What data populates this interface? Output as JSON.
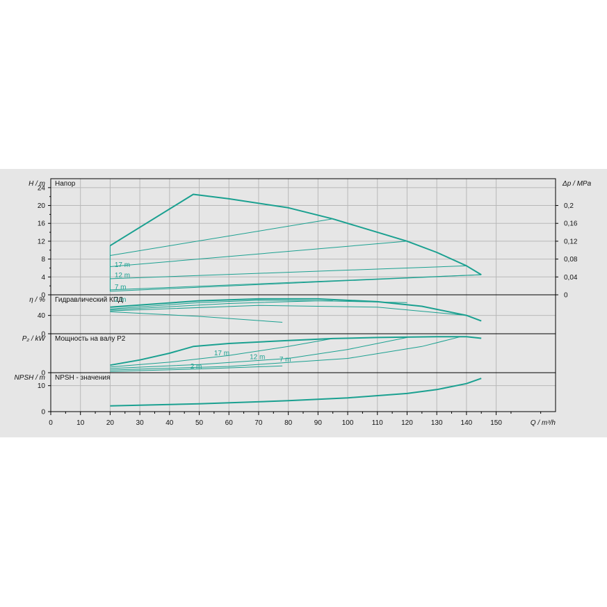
{
  "colors": {
    "curve": "#1aa090",
    "grid": "#b8b8b8",
    "panel": "#e6e6e6",
    "frame": "#000000"
  },
  "chart_data": {
    "type": "line",
    "x_axis": {
      "label": "Q / m³/h",
      "range": [
        0,
        170
      ],
      "ticks": [
        "0",
        "10",
        "20",
        "30",
        "40",
        "50",
        "60",
        "70",
        "80",
        "90",
        "100",
        "110",
        "120",
        "130",
        "140",
        "150"
      ]
    },
    "panels": [
      {
        "id": "head",
        "title": "Напор",
        "ylabel": "H / m",
        "ylim": [
          0,
          26
        ],
        "yticks": [
          "0",
          "4",
          "8",
          "12",
          "16",
          "20",
          "24"
        ],
        "y2label": "Δp / MPa",
        "y2ticks": [
          "0",
          "0,04",
          "0,08",
          "0,12",
          "0,16",
          "0,2"
        ],
        "series": [
          {
            "name": "envelope",
            "x": [
              20,
              48,
              60,
              80,
              95,
              110,
              120,
              130,
              140,
              145
            ],
            "y": [
              11,
              22.5,
              21.5,
              19.5,
              17,
              14,
              12,
              9.5,
              6.5,
              4.5
            ]
          },
          {
            "name": "left-boundary",
            "x": [
              20,
              20,
              145
            ],
            "y": [
              11,
              0.8,
              4.5
            ]
          },
          {
            "name": "17 m",
            "x": [
              20,
              95
            ],
            "y": [
              8.8,
              17
            ]
          },
          {
            "name": "12 m",
            "x": [
              20,
              120
            ],
            "y": [
              6.3,
              12
            ]
          },
          {
            "name": "7 m",
            "x": [
              20,
              140
            ],
            "y": [
              3.6,
              6.5
            ]
          },
          {
            "name": "2 m",
            "x": [
              20,
              145
            ],
            "y": [
              1.1,
              4.5
            ]
          }
        ],
        "curve_labels": [
          "17 m",
          "12 m",
          "7 m",
          "2 m"
        ]
      },
      {
        "id": "eff",
        "title": "Гидравлический КПД",
        "ylabel": "η / %",
        "ylim": [
          0,
          85
        ],
        "yticks": [
          "0",
          "40"
        ],
        "series": [
          {
            "name": "max",
            "x": [
              20,
              50,
              70,
              90,
              110,
              125,
              140,
              145
            ],
            "y": [
              58,
              72,
              76,
              76,
              70,
              60,
              40,
              28
            ]
          },
          {
            "name": "17 m",
            "x": [
              20,
              50,
              70,
              95
            ],
            "y": [
              54,
              68,
              73,
              72
            ]
          },
          {
            "name": "12 m",
            "x": [
              20,
              60,
              90,
              120
            ],
            "y": [
              52,
              66,
              72,
              68
            ]
          },
          {
            "name": "7 m",
            "x": [
              20,
              70,
              110,
              140
            ],
            "y": [
              50,
              62,
              58,
              40
            ]
          },
          {
            "name": "2 m",
            "x": [
              20,
              50,
              78
            ],
            "y": [
              48,
              38,
              25
            ]
          }
        ]
      },
      {
        "id": "power",
        "title": "Мощность на валу P2",
        "ylabel": "P₂ / kW",
        "ylim": [
          0,
          2.6
        ],
        "yticks": [
          "0"
        ],
        "series": [
          {
            "name": "max",
            "x": [
              20,
              30,
              40,
              48,
              60,
              80,
              95,
              110,
              130,
              140,
              145
            ],
            "y": [
              0.5,
              0.85,
              1.3,
              1.75,
              1.95,
              2.15,
              2.28,
              2.35,
              2.4,
              2.4,
              2.3
            ]
          },
          {
            "name": "17 m",
            "x": [
              20,
              40,
              60,
              80,
              95
            ],
            "y": [
              0.38,
              0.7,
              1.15,
              1.75,
              2.28
            ]
          },
          {
            "name": "12 m",
            "x": [
              20,
              50,
              80,
              100,
              120
            ],
            "y": [
              0.28,
              0.55,
              0.95,
              1.55,
              2.35
            ]
          },
          {
            "name": "7 m",
            "x": [
              20,
              60,
              100,
              125,
              138
            ],
            "y": [
              0.18,
              0.42,
              0.95,
              1.75,
              2.4
            ]
          },
          {
            "name": "2 m",
            "x": [
              20,
              50,
              78
            ],
            "y": [
              0.08,
              0.25,
              0.45
            ]
          }
        ],
        "curve_labels": [
          "17 m",
          "12 m",
          "7 m",
          "2 m"
        ]
      },
      {
        "id": "npsh",
        "title": "NPSH - значения",
        "ylabel": "NPSH / m",
        "ylim": [
          0,
          15
        ],
        "yticks": [
          "0",
          "10"
        ],
        "series": [
          {
            "name": "npsh",
            "x": [
              20,
              50,
              80,
              100,
              120,
              130,
              140,
              145
            ],
            "y": [
              2.2,
              3.0,
              4.2,
              5.3,
              7.0,
              8.5,
              10.8,
              12.8
            ]
          }
        ]
      }
    ]
  }
}
